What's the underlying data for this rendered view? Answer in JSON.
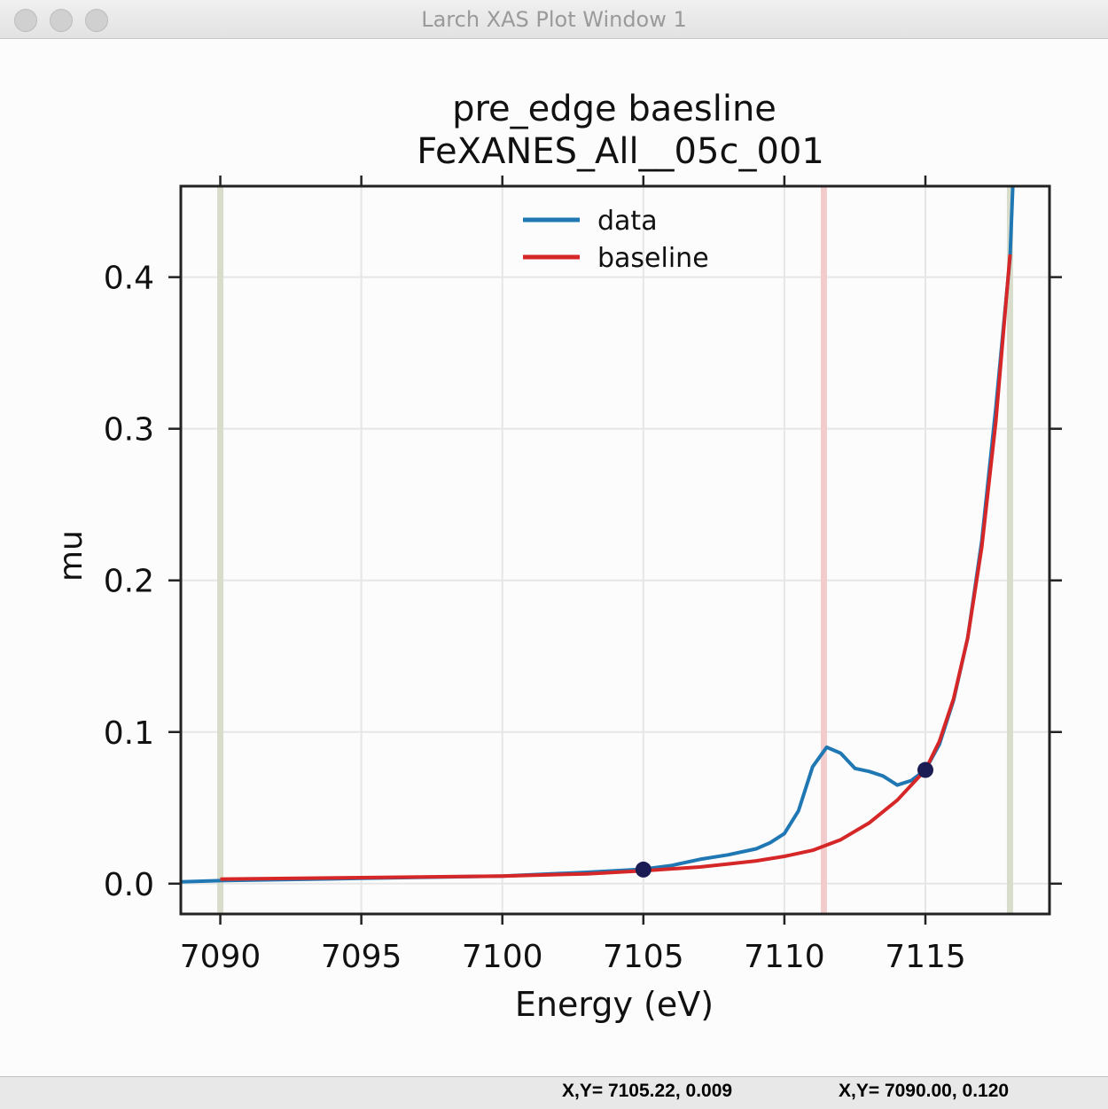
{
  "window": {
    "title": "Larch XAS Plot Window 1"
  },
  "status": {
    "left": "X,Y= 7105.22, 0.009",
    "right": "X,Y= 7090.00, 0.120"
  },
  "chart_data": {
    "type": "line",
    "title": "pre_edge baesline",
    "subtitle": "FeXANES_All__05c_001",
    "xlabel": "Energy (eV)",
    "ylabel": "mu",
    "xlim": [
      7088.6,
      7119.4
    ],
    "ylim": [
      -0.02,
      0.46
    ],
    "xticks": [
      7090,
      7095,
      7100,
      7105,
      7110,
      7115
    ],
    "yticks": [
      0.0,
      0.1,
      0.2,
      0.3,
      0.4
    ],
    "xtick_labels": [
      "7090",
      "7095",
      "7100",
      "7105",
      "7110",
      "7115"
    ],
    "ytick_labels": [
      "0.0",
      "0.1",
      "0.2",
      "0.3",
      "0.4"
    ],
    "grid": true,
    "legend": "top-center",
    "series": [
      {
        "name": "data",
        "color": "#1f77b4",
        "x": [
          7088.6,
          7090,
          7095,
          7100,
          7103,
          7105,
          7106,
          7107,
          7108,
          7109,
          7109.5,
          7110,
          7110.5,
          7111,
          7111.5,
          7112,
          7112.5,
          7113,
          7113.5,
          7114,
          7114.5,
          7115,
          7115.5,
          7116,
          7116.5,
          7117,
          7117.5,
          7118,
          7118.1
        ],
        "y": [
          0.0012,
          0.002,
          0.0035,
          0.005,
          0.0075,
          0.0095,
          0.012,
          0.016,
          0.019,
          0.023,
          0.027,
          0.033,
          0.048,
          0.077,
          0.09,
          0.086,
          0.076,
          0.074,
          0.071,
          0.065,
          0.068,
          0.075,
          0.092,
          0.121,
          0.162,
          0.226,
          0.314,
          0.413,
          0.46
        ]
      },
      {
        "name": "baseline",
        "color": "#d62728",
        "x": [
          7090,
          7095,
          7100,
          7103,
          7105,
          7107,
          7108,
          7109,
          7110,
          7111,
          7112,
          7113,
          7114,
          7115,
          7115.5,
          7116,
          7116.5,
          7117,
          7117.5,
          7118
        ],
        "y": [
          0.003,
          0.004,
          0.005,
          0.0065,
          0.0085,
          0.011,
          0.013,
          0.015,
          0.018,
          0.022,
          0.029,
          0.04,
          0.055,
          0.075,
          0.094,
          0.122,
          0.162,
          0.222,
          0.305,
          0.415
        ]
      }
    ],
    "markers": [
      {
        "x": 7105,
        "y": 0.0093,
        "color": "#1c1c54"
      },
      {
        "x": 7115,
        "y": 0.075,
        "color": "#1c1c54"
      }
    ],
    "vlines": [
      {
        "x": 7090,
        "color": "#d8dccb"
      },
      {
        "x": 7111.4,
        "color": "#f2cccc"
      },
      {
        "x": 7118,
        "color": "#d8dccb"
      }
    ]
  }
}
